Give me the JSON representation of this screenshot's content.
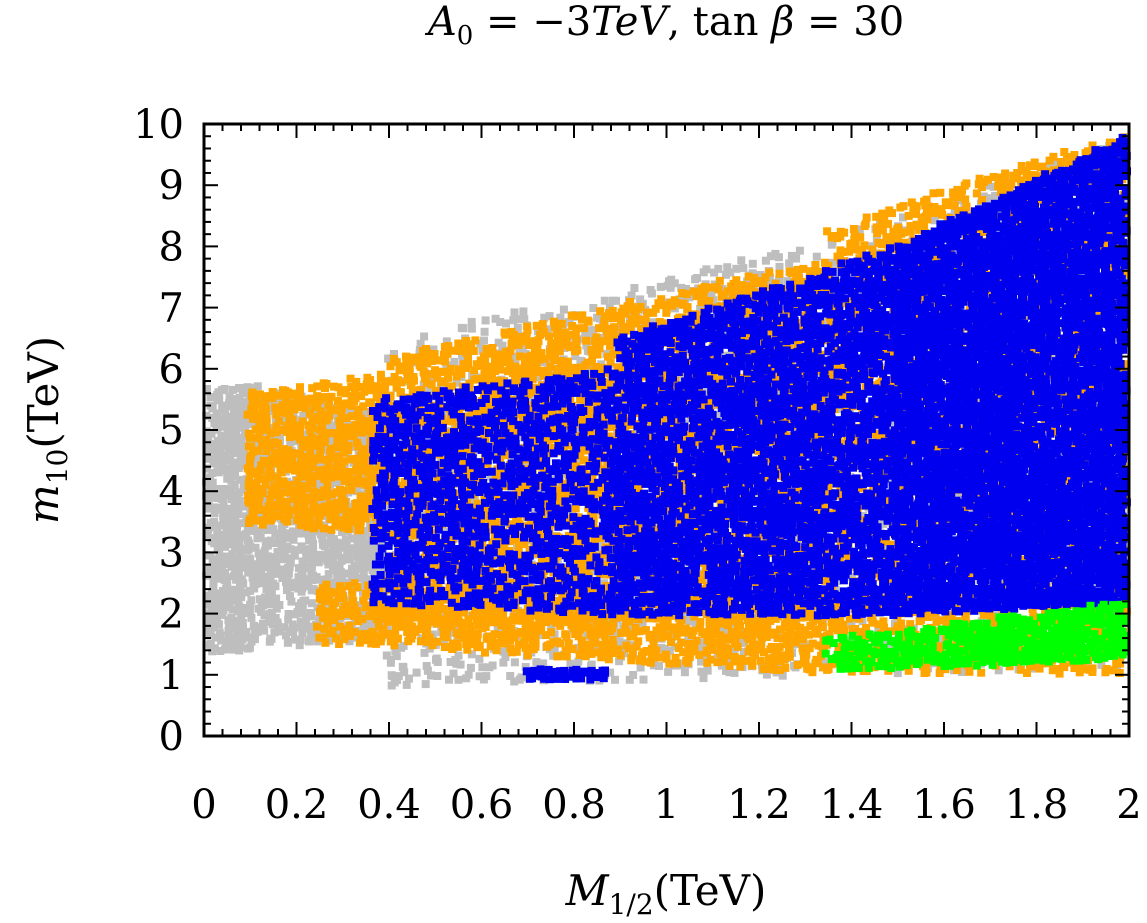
{
  "chart_data": {
    "type": "scatter",
    "title": "A₀ = −3TeV, tan β = 30",
    "title_parts": {
      "a": "A",
      "a_sub": "0",
      "a_rhs": " = −3",
      "tev": "TeV",
      "sep": ", ",
      "tan": "tan ",
      "beta": "β",
      "rhs": " = 30"
    },
    "xlabel": "M1/2(TeV)",
    "xlabel_parts": {
      "main": "M",
      "sub": "1/2",
      "unit": "(TeV)"
    },
    "ylabel": "m10(TeV)",
    "ylabel_parts": {
      "main": "m",
      "sub": "10",
      "unit": "(TeV)"
    },
    "xlim": [
      0,
      2
    ],
    "ylim": [
      0,
      10
    ],
    "xticks": [
      0,
      0.2,
      0.4,
      0.6,
      0.8,
      1,
      1.2,
      1.4,
      1.6,
      1.8,
      2
    ],
    "xtick_labels": [
      "0",
      "0.2",
      "0.4",
      "0.6",
      "0.8",
      "1",
      "1.2",
      "1.4",
      "1.6",
      "1.8",
      "2"
    ],
    "yticks": [
      0,
      1,
      2,
      3,
      4,
      5,
      6,
      7,
      8,
      9,
      10
    ],
    "ytick_labels": [
      "0",
      "1",
      "2",
      "3",
      "4",
      "5",
      "6",
      "7",
      "8",
      "9",
      "10"
    ],
    "grid": false,
    "legend": "none",
    "series": [
      {
        "name": "gray",
        "color": "#bebebe",
        "regions": [
          {
            "x0": 0.0,
            "x1": 0.08,
            "ylow": [
              1.4,
              1.4
            ],
            "yhigh": [
              5.7,
              5.7
            ],
            "density": 0.7
          },
          {
            "x0": 0.08,
            "x1": 0.4,
            "ylow": [
              1.45,
              1.6
            ],
            "yhigh": [
              5.8,
              5.2
            ],
            "density": 0.55
          },
          {
            "x0": 0.4,
            "x1": 1.3,
            "ylow": [
              0.85,
              1.0
            ],
            "yhigh": [
              6.5,
              8.0
            ],
            "density": 0.2
          },
          {
            "x0": 1.3,
            "x1": 2.0,
            "ylow": [
              1.0,
              1.1
            ],
            "yhigh": [
              8.0,
              9.8
            ],
            "density": 0.12
          }
        ]
      },
      {
        "name": "orange",
        "color": "#ffa500",
        "regions": [
          {
            "x0": 0.1,
            "x1": 0.4,
            "ylow": [
              3.5,
              3.3
            ],
            "yhigh": [
              5.6,
              5.9
            ],
            "density": 0.55
          },
          {
            "x0": 0.25,
            "x1": 1.35,
            "ylow": [
              1.55,
              1.05
            ],
            "yhigh": [
              2.5,
              2.2
            ],
            "density": 0.5
          },
          {
            "x0": 0.4,
            "x1": 1.35,
            "ylow": [
              1.8,
              2.0
            ],
            "yhigh": [
              6.2,
              7.8
            ],
            "density": 0.45
          },
          {
            "x0": 1.35,
            "x1": 2.0,
            "ylow": [
              1.05,
              1.05
            ],
            "yhigh": [
              8.3,
              9.9
            ],
            "density": 0.35
          }
        ]
      },
      {
        "name": "blue",
        "color": "#0000ee",
        "regions": [
          {
            "x0": 0.37,
            "x1": 0.9,
            "ylow": [
              2.2,
              2.0
            ],
            "yhigh": [
              5.5,
              6.0
            ],
            "density": 0.45
          },
          {
            "x0": 0.9,
            "x1": 1.5,
            "ylow": [
              2.0,
              2.0
            ],
            "yhigh": [
              6.5,
              8.0
            ],
            "density": 0.65
          },
          {
            "x0": 1.5,
            "x1": 2.0,
            "ylow": [
              2.0,
              2.2
            ],
            "yhigh": [
              8.0,
              9.8
            ],
            "density": 0.85
          },
          {
            "x0": 0.7,
            "x1": 0.87,
            "ylow": [
              0.95,
              0.95
            ],
            "yhigh": [
              1.1,
              1.1
            ],
            "density": 1.0
          }
        ]
      },
      {
        "name": "green",
        "color": "#00ff00",
        "regions": [
          {
            "x0": 1.35,
            "x1": 1.6,
            "ylow": [
              1.05,
              1.2
            ],
            "yhigh": [
              1.6,
              1.75
            ],
            "density": 0.6
          },
          {
            "x0": 1.6,
            "x1": 2.0,
            "ylow": [
              1.15,
              1.3
            ],
            "yhigh": [
              1.8,
              2.2
            ],
            "density": 0.8
          }
        ]
      }
    ]
  }
}
